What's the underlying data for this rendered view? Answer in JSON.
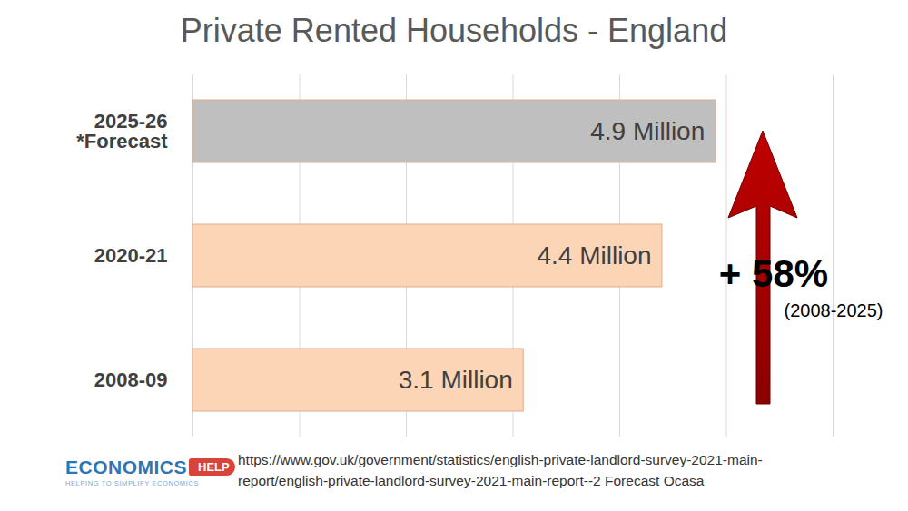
{
  "chart_data": {
    "type": "bar",
    "orientation": "horizontal",
    "title": "Private Rented Households - England",
    "categories": [
      "2025-26\n*Forecast",
      "2020-21",
      "2008-09"
    ],
    "values": [
      4.9,
      4.4,
      3.1
    ],
    "value_labels": [
      "4.9 Million",
      "4.4 Million",
      "3.1 Million"
    ],
    "data_labels": true,
    "colors": [
      "#bfbfbf",
      "#fbd5b5",
      "#fbd5b5"
    ],
    "xlim": [
      0,
      6
    ],
    "xticks": [
      0,
      1,
      2,
      3,
      4,
      5,
      6
    ],
    "grid": true,
    "tick_labels": "y",
    "annotations": [
      "+ 58%",
      "(2008-2025)"
    ],
    "source": "https://www.gov.uk/government/statistics/english-private-landlord-survey-2021-main-report/english-private-landlord-survey-2021-main-report--2 Forecast Ocasa",
    "logo": {
      "text": "ECONOMICS",
      "badge": "HELP",
      "tagline": "HELPING TO SIMPLIFY ECONOMICS"
    }
  }
}
